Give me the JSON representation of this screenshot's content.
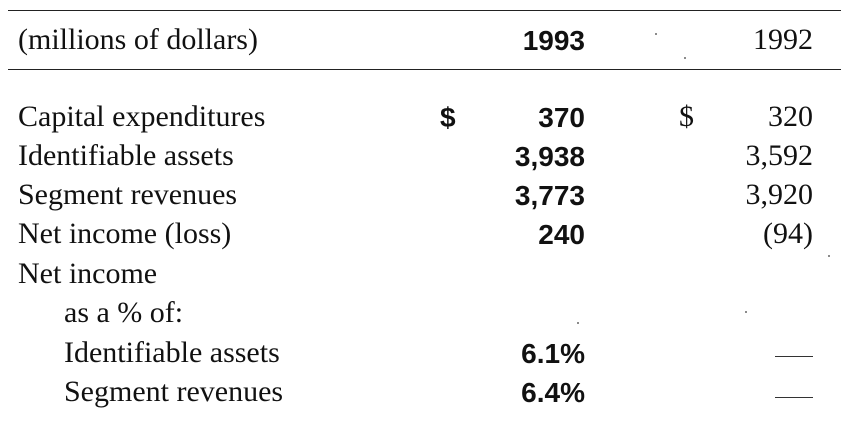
{
  "header": {
    "col_label": "(millions of dollars)",
    "year_current": "1993",
    "year_prior": "1992"
  },
  "currency_symbol": "$",
  "rows": [
    {
      "label": "Capital expenditures",
      "v1993": "370",
      "v1992": "320"
    },
    {
      "label": "Identifiable assets",
      "v1993": "3,938",
      "v1992": "3,592"
    },
    {
      "label": "Segment revenues",
      "v1993": "3,773",
      "v1992": "3,920"
    },
    {
      "label": "Net income (loss)",
      "v1993": "240",
      "v1992": "(94)"
    }
  ],
  "ratio_section": {
    "label_line1": "Net income",
    "label_line2": "as a % of:",
    "rows": [
      {
        "label": "Identifiable assets",
        "v1993": "6.1%",
        "v1992": "—"
      },
      {
        "label": "Segment revenues",
        "v1993": "6.4%",
        "v1992": "—"
      }
    ]
  }
}
